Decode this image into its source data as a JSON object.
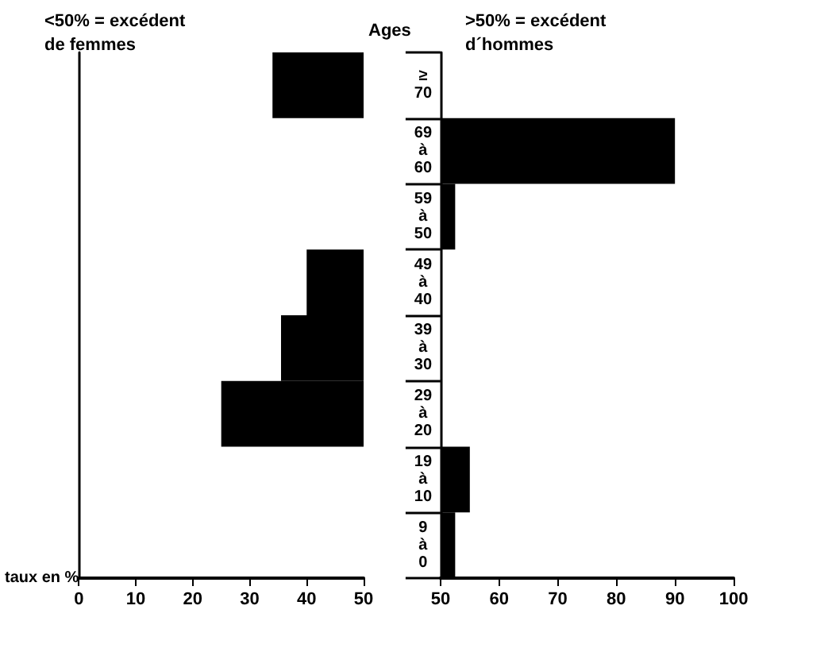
{
  "chart_data": [
    {
      "type": "bar",
      "orientation": "horizontal",
      "xlabel": "taux en %",
      "categories": [
        null,
        null,
        null,
        null,
        null,
        null,
        null,
        null
      ],
      "base": [
        50,
        null,
        null,
        50,
        50,
        50,
        null,
        null
      ],
      "values": [
        -16,
        null,
        null,
        -10,
        -14.5,
        -25,
        null,
        null
      ],
      "color": "#000000",
      "xlim": [
        0,
        50
      ],
      "xticks": [
        0,
        10,
        20,
        30,
        40,
        50
      ],
      "tick_labels": "x",
      "annotations": [
        "<50% = excédent\nde femmes"
      ]
    },
    {
      "type": "bar",
      "orientation": "horizontal",
      "ylabel": "Ages",
      "categories": [
        "≥ 70",
        "69 à 60",
        "59 à 50",
        "49 à 40",
        "39 à 30",
        "29 à 20",
        "19 à 10",
        "9 à 0"
      ],
      "base": [
        null,
        50,
        50,
        null,
        null,
        null,
        50,
        50
      ],
      "values": [
        null,
        40,
        2.5,
        null,
        null,
        null,
        5,
        2.5
      ],
      "color": "#000000",
      "xlim": [
        50,
        100
      ],
      "xticks": [
        50,
        60,
        70,
        80,
        90,
        100
      ],
      "annotations": [
        ">50% = excédent\nd´hommes"
      ]
    }
  ]
}
